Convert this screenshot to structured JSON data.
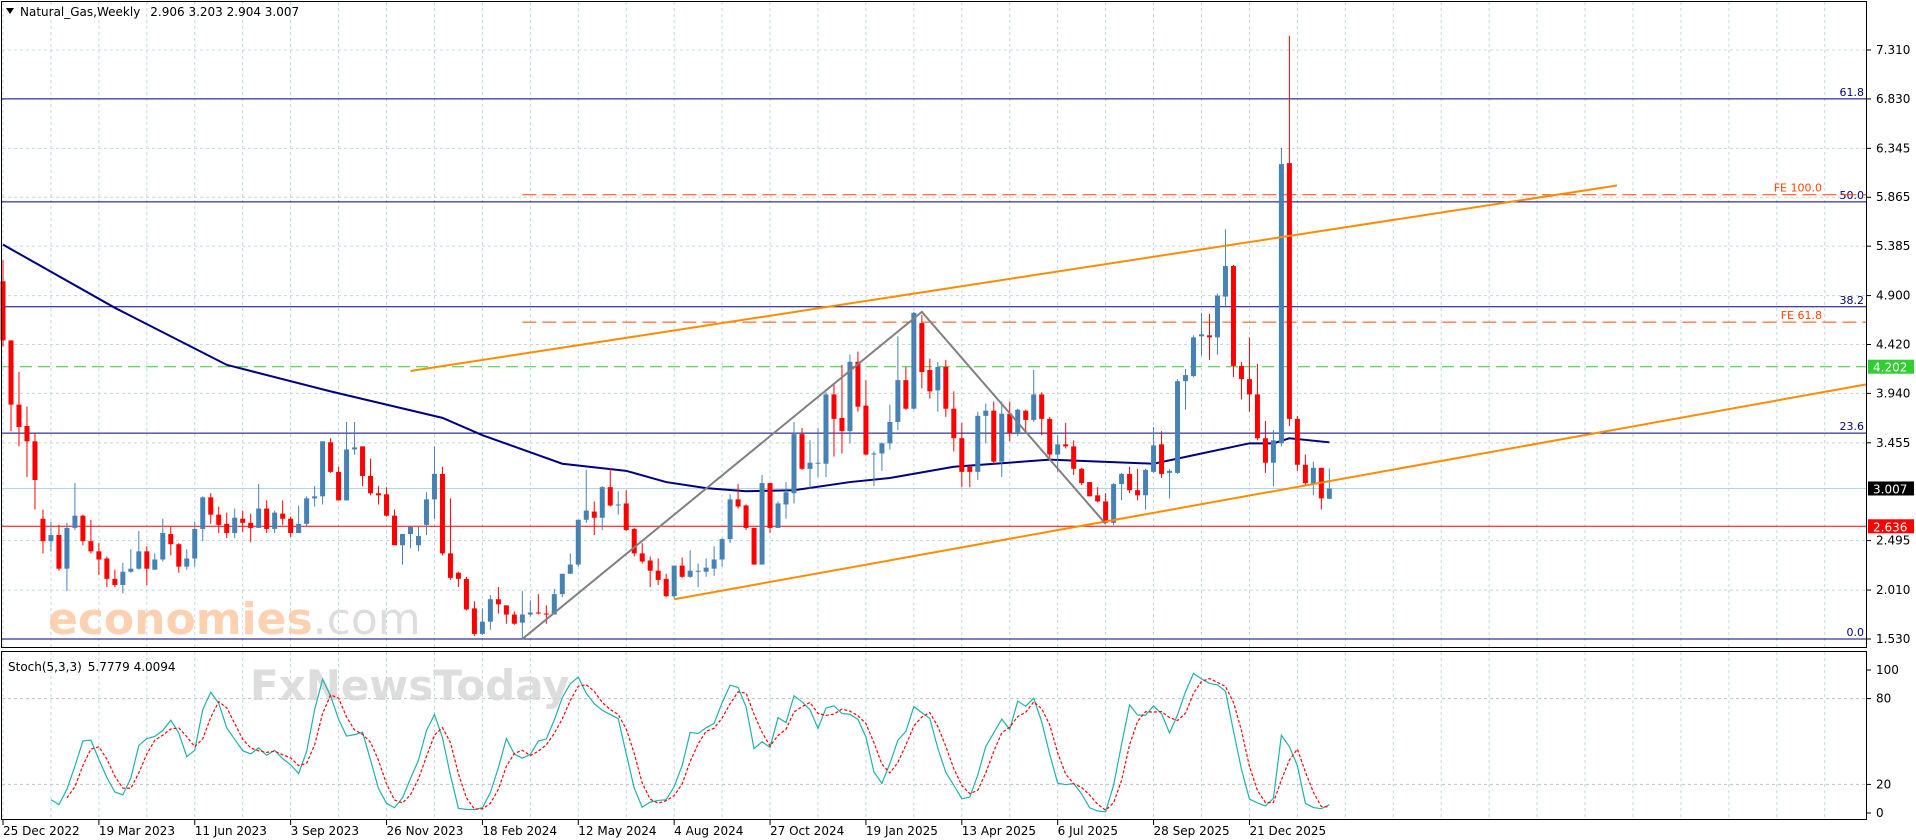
{
  "header": {
    "symbol": "Natural_Gas,Weekly",
    "ohlc": "2.906 3.203 2.904 3.007"
  },
  "colors": {
    "bull": "#4682b4",
    "bear": "#ff0000",
    "ma": "#000080",
    "channel": "#ff8c00",
    "zigzag": "#808080",
    "fib": "#000080",
    "fe": "#ff4500",
    "support": "#ff0000",
    "green_level": "#32cd32",
    "current": "#add8e6",
    "stoch_main": "#20b2aa",
    "stoch_signal": "#ff0000"
  },
  "chart_data": [
    {
      "type": "candlestick",
      "title": "Natural_Gas,Weekly",
      "y_ticks": [
        "7.310",
        "6.830",
        "6.345",
        "5.865",
        "5.385",
        "4.900",
        "4.420",
        "3.940",
        "3.455",
        "2.495",
        "2.010",
        "1.530"
      ],
      "ylim": [
        1.53,
        7.31
      ],
      "grid": true,
      "x_tick_labels": [
        "25 Dec 2022",
        "19 Mar 2023",
        "11 Jun 2023",
        "3 Sep 2023",
        "26 Nov 2023",
        "18 Feb 2024",
        "12 May 2024",
        "4 Aug 2024",
        "27 Oct 2024",
        "19 Jan 2025",
        "13 Apr 2025",
        "6 Jul 2025",
        "28 Sep 2025",
        "21 Dec 2025"
      ],
      "x_tick_every_bars": 12,
      "candles_ohlc": [
        [
          5.04,
          5.25,
          4.4,
          4.46
        ],
        [
          4.46,
          4.46,
          3.57,
          3.83
        ],
        [
          3.83,
          4.15,
          3.42,
          3.61
        ],
        [
          3.62,
          3.81,
          3.12,
          3.47
        ],
        [
          3.47,
          3.55,
          2.8,
          3.09
        ],
        [
          2.71,
          2.8,
          2.37,
          2.49
        ],
        [
          2.49,
          2.68,
          2.39,
          2.55
        ],
        [
          2.55,
          2.65,
          2.2,
          2.22
        ],
        [
          2.22,
          2.67,
          2.0,
          2.62
        ],
        [
          2.62,
          3.06,
          2.6,
          2.74
        ],
        [
          2.74,
          2.75,
          2.45,
          2.49
        ],
        [
          2.49,
          2.7,
          2.37,
          2.39
        ],
        [
          2.39,
          2.47,
          2.16,
          2.31
        ],
        [
          2.32,
          2.34,
          2.04,
          2.12
        ],
        [
          2.12,
          2.21,
          2.04,
          2.06
        ],
        [
          2.06,
          2.28,
          1.98,
          2.19
        ],
        [
          2.19,
          2.41,
          2.18,
          2.22
        ],
        [
          2.22,
          2.59,
          2.21,
          2.39
        ],
        [
          2.39,
          2.44,
          2.06,
          2.22
        ],
        [
          2.21,
          2.37,
          2.21,
          2.31
        ],
        [
          2.31,
          2.71,
          2.29,
          2.57
        ],
        [
          2.56,
          2.63,
          2.35,
          2.46
        ],
        [
          2.46,
          2.47,
          2.18,
          2.24
        ],
        [
          2.24,
          2.41,
          2.21,
          2.32
        ],
        [
          2.32,
          2.68,
          2.24,
          2.61
        ],
        [
          2.61,
          2.93,
          2.49,
          2.92
        ],
        [
          2.92,
          2.96,
          2.66,
          2.75
        ],
        [
          2.75,
          2.83,
          2.57,
          2.65
        ],
        [
          2.66,
          2.77,
          2.52,
          2.57
        ],
        [
          2.57,
          2.81,
          2.52,
          2.72
        ],
        [
          2.71,
          2.79,
          2.58,
          2.67
        ],
        [
          2.67,
          2.76,
          2.48,
          2.62
        ],
        [
          2.62,
          3.05,
          2.62,
          2.81
        ],
        [
          2.81,
          2.89,
          2.57,
          2.61
        ],
        [
          2.61,
          2.79,
          2.57,
          2.77
        ],
        [
          2.76,
          2.89,
          2.65,
          2.71
        ],
        [
          2.71,
          2.73,
          2.53,
          2.57
        ],
        [
          2.57,
          2.84,
          2.57,
          2.66
        ],
        [
          2.66,
          2.93,
          2.64,
          2.91
        ],
        [
          2.91,
          3.03,
          2.83,
          2.93
        ],
        [
          2.93,
          3.47,
          2.85,
          3.47
        ],
        [
          3.46,
          3.5,
          3.16,
          3.17
        ],
        [
          3.17,
          3.22,
          2.89,
          2.89
        ],
        [
          2.89,
          3.66,
          2.89,
          3.39
        ],
        [
          3.39,
          3.66,
          3.34,
          3.41
        ],
        [
          3.42,
          3.42,
          3.03,
          3.13
        ],
        [
          3.13,
          3.3,
          2.94,
          2.96
        ],
        [
          2.96,
          3.03,
          2.85,
          2.94
        ],
        [
          2.95,
          3.02,
          2.73,
          2.74
        ],
        [
          2.74,
          2.8,
          2.45,
          2.45
        ],
        [
          2.45,
          2.56,
          2.26,
          2.56
        ],
        [
          2.56,
          2.63,
          2.42,
          2.63
        ],
        [
          2.45,
          2.63,
          2.39,
          2.54
        ],
        [
          2.65,
          2.97,
          2.55,
          2.9
        ],
        [
          2.9,
          3.42,
          2.71,
          3.15
        ],
        [
          3.15,
          3.22,
          2.35,
          2.37
        ],
        [
          2.37,
          2.91,
          2.11,
          2.13
        ],
        [
          2.18,
          2.19,
          2.04,
          2.12
        ],
        [
          2.12,
          2.14,
          1.81,
          1.82
        ],
        [
          1.83,
          1.9,
          1.56,
          1.58
        ],
        [
          1.58,
          1.83,
          1.57,
          1.7
        ],
        [
          1.7,
          1.96,
          1.62,
          1.92
        ],
        [
          1.92,
          2.04,
          1.78,
          1.87
        ],
        [
          1.86,
          1.86,
          1.68,
          1.77
        ],
        [
          1.77,
          1.8,
          1.67,
          1.68
        ],
        [
          1.69,
          2.0,
          1.53,
          1.77
        ],
        [
          1.77,
          1.91,
          1.75,
          1.79
        ],
        [
          1.79,
          1.97,
          1.77,
          1.78
        ],
        [
          1.78,
          1.86,
          1.68,
          1.77
        ],
        [
          1.77,
          2.02,
          1.77,
          1.97
        ],
        [
          1.97,
          2.17,
          1.94,
          2.17
        ],
        [
          2.17,
          2.37,
          2.17,
          2.26
        ],
        [
          2.26,
          2.7,
          2.24,
          2.7
        ],
        [
          2.7,
          3.19,
          2.67,
          2.79
        ],
        [
          2.78,
          2.88,
          2.55,
          2.72
        ],
        [
          2.72,
          3.03,
          2.6,
          3.02
        ],
        [
          3.02,
          3.21,
          2.83,
          2.84
        ],
        [
          2.84,
          2.98,
          2.75,
          2.85
        ],
        [
          2.86,
          2.99,
          2.59,
          2.6
        ],
        [
          2.61,
          2.62,
          2.34,
          2.37
        ],
        [
          2.37,
          2.47,
          2.27,
          2.29
        ],
        [
          2.3,
          2.34,
          2.04,
          2.2
        ],
        [
          2.2,
          2.32,
          2.06,
          2.11
        ],
        [
          2.12,
          2.17,
          1.94,
          1.95
        ],
        [
          1.95,
          2.25,
          1.93,
          2.25
        ],
        [
          2.25,
          2.33,
          2.13,
          2.14
        ],
        [
          2.14,
          2.4,
          2.13,
          2.2
        ],
        [
          2.19,
          2.27,
          2.04,
          2.2
        ],
        [
          2.19,
          2.32,
          2.14,
          2.23
        ],
        [
          2.22,
          2.44,
          2.15,
          2.31
        ],
        [
          2.31,
          2.52,
          2.24,
          2.51
        ],
        [
          2.51,
          2.95,
          2.47,
          2.9
        ],
        [
          2.9,
          3.05,
          2.81,
          2.83
        ],
        [
          2.84,
          2.85,
          2.6,
          2.62
        ],
        [
          2.62,
          2.62,
          2.26,
          2.26
        ],
        [
          2.26,
          3.14,
          2.26,
          3.06
        ],
        [
          3.06,
          3.06,
          2.57,
          2.62
        ],
        [
          2.62,
          2.88,
          2.62,
          2.86
        ],
        [
          2.85,
          3.07,
          2.71,
          2.97
        ],
        [
          2.96,
          3.66,
          2.86,
          3.54
        ],
        [
          3.54,
          3.6,
          3.19,
          3.2
        ],
        [
          3.2,
          3.48,
          3.0,
          3.26
        ],
        [
          3.25,
          3.6,
          3.12,
          3.26
        ],
        [
          3.25,
          3.95,
          3.12,
          3.93
        ],
        [
          3.93,
          4.04,
          3.32,
          3.69
        ],
        [
          3.7,
          4.22,
          3.35,
          3.57
        ],
        [
          3.57,
          4.32,
          3.45,
          4.25
        ],
        [
          4.25,
          4.35,
          3.76,
          3.81
        ],
        [
          3.82,
          4.07,
          3.33,
          3.34
        ],
        [
          3.34,
          3.37,
          3.03,
          3.35
        ],
        [
          3.35,
          3.46,
          3.18,
          3.45
        ],
        [
          3.45,
          3.83,
          3.39,
          3.66
        ],
        [
          3.66,
          4.5,
          3.58,
          4.07
        ],
        [
          4.07,
          4.2,
          3.78,
          3.79
        ],
        [
          3.79,
          4.74,
          3.78,
          4.73
        ],
        [
          4.63,
          4.71,
          3.99,
          4.15
        ],
        [
          4.17,
          4.28,
          3.89,
          3.96
        ],
        [
          3.97,
          4.25,
          3.76,
          4.2
        ],
        [
          4.2,
          4.27,
          3.71,
          3.79
        ],
        [
          3.79,
          3.96,
          3.37,
          3.5
        ],
        [
          3.5,
          3.65,
          3.02,
          3.17
        ],
        [
          3.22,
          3.22,
          3.02,
          3.17
        ],
        [
          3.17,
          3.76,
          3.09,
          3.72
        ],
        [
          3.72,
          3.84,
          3.45,
          3.77
        ],
        [
          3.77,
          3.86,
          3.25,
          3.27
        ],
        [
          3.27,
          3.86,
          3.12,
          3.74
        ],
        [
          3.74,
          3.86,
          3.47,
          3.55
        ],
        [
          3.55,
          3.79,
          3.52,
          3.78
        ],
        [
          3.77,
          3.78,
          3.56,
          3.68
        ],
        [
          3.68,
          4.17,
          3.66,
          3.93
        ],
        [
          3.93,
          3.95,
          3.53,
          3.69
        ],
        [
          3.69,
          3.71,
          3.29,
          3.34
        ],
        [
          3.34,
          3.53,
          3.17,
          3.44
        ],
        [
          3.44,
          3.65,
          3.4,
          3.42
        ],
        [
          3.42,
          3.48,
          3.14,
          3.2
        ],
        [
          3.2,
          3.21,
          3.04,
          3.06
        ],
        [
          3.07,
          3.07,
          2.93,
          2.93
        ],
        [
          2.94,
          3.02,
          2.87,
          2.88
        ],
        [
          2.88,
          2.96,
          2.66,
          2.67
        ],
        [
          2.67,
          3.06,
          2.65,
          3.05
        ],
        [
          3.05,
          3.16,
          2.89,
          3.15
        ],
        [
          3.15,
          3.22,
          2.96,
          2.99
        ],
        [
          2.99,
          3.2,
          2.89,
          2.94
        ],
        [
          2.94,
          3.2,
          2.8,
          3.19
        ],
        [
          3.17,
          3.61,
          3.16,
          3.43
        ],
        [
          3.44,
          3.57,
          3.11,
          3.15
        ],
        [
          3.16,
          3.2,
          2.91,
          3.18
        ],
        [
          3.16,
          4.08,
          3.15,
          4.06
        ],
        [
          4.06,
          4.18,
          3.78,
          4.12
        ],
        [
          4.11,
          4.51,
          4.1,
          4.49
        ],
        [
          4.5,
          4.73,
          4.31,
          4.52
        ],
        [
          4.51,
          4.72,
          4.27,
          4.49
        ],
        [
          4.49,
          4.92,
          4.32,
          4.9
        ],
        [
          4.89,
          5.55,
          4.8,
          5.19
        ],
        [
          5.19,
          5.2,
          4.1,
          4.21
        ],
        [
          4.21,
          4.25,
          3.88,
          4.08
        ],
        [
          4.08,
          4.49,
          3.76,
          3.93
        ],
        [
          3.93,
          4.23,
          3.48,
          3.5
        ],
        [
          3.5,
          3.67,
          3.16,
          3.26
        ],
        [
          3.26,
          3.58,
          3.03,
          3.48
        ],
        [
          3.45,
          6.35,
          3.42,
          6.19
        ],
        [
          6.2,
          7.45,
          3.62,
          3.69
        ],
        [
          3.69,
          3.72,
          3.18,
          3.24
        ],
        [
          3.24,
          3.34,
          3.04,
          3.06
        ],
        [
          3.05,
          3.27,
          2.94,
          3.21
        ],
        [
          3.21,
          3.21,
          2.8,
          2.91
        ],
        [
          2.906,
          3.203,
          2.904,
          3.007
        ]
      ],
      "moving_average_points_bar_price": [
        [
          0,
          5.4
        ],
        [
          14,
          4.78
        ],
        [
          28,
          4.22
        ],
        [
          41,
          3.96
        ],
        [
          55,
          3.7
        ],
        [
          60,
          3.53
        ],
        [
          70,
          3.25
        ],
        [
          78,
          3.18
        ],
        [
          83,
          3.07
        ],
        [
          88,
          3.01
        ],
        [
          93,
          2.98
        ],
        [
          99,
          2.99
        ],
        [
          106,
          3.07
        ],
        [
          111,
          3.11
        ],
        [
          119,
          3.22
        ],
        [
          131,
          3.29
        ],
        [
          144,
          3.25
        ],
        [
          150,
          3.35
        ],
        [
          156,
          3.45
        ],
        [
          159,
          3.45
        ],
        [
          161,
          3.5
        ],
        [
          166,
          3.46
        ]
      ],
      "fibonacci_retracement": [
        {
          "label": "61.8",
          "price": 6.83
        },
        {
          "label": "50.0",
          "price": 5.82
        },
        {
          "label": "38.2",
          "price": 4.79
        },
        {
          "label": "23.6",
          "price": 3.55
        },
        {
          "label": "0.0",
          "price": 1.53
        }
      ],
      "fibonacci_expansion": [
        {
          "label": "FE 100.0",
          "price": 5.89,
          "from_bar": 65
        },
        {
          "label": "FE 61.8",
          "price": 4.64,
          "from_bar": 65
        }
      ],
      "price_markers": [
        {
          "label": "4.202",
          "price": 4.202,
          "style": "green-dashed"
        },
        {
          "label": "3.007",
          "price": 3.007,
          "style": "current"
        },
        {
          "label": "2.636",
          "price": 2.636,
          "style": "red-solid"
        }
      ],
      "channel_lines": [
        {
          "from": [
            51,
            4.16
          ],
          "to": [
            202,
            5.98
          ]
        },
        {
          "from": [
            84,
            1.92
          ],
          "to": [
            234,
            4.04
          ]
        }
      ],
      "zigzag_points_bar_price": [
        [
          65,
          1.53
        ],
        [
          115,
          4.74
        ],
        [
          138,
          2.66
        ]
      ]
    },
    {
      "type": "line",
      "title": "Stoch(5,3,3)",
      "values_text": "5.7779 4.0094",
      "y_ticks": [
        "100",
        "80",
        "20",
        "0"
      ],
      "ylim": [
        0,
        100
      ],
      "levels": [
        20,
        80
      ],
      "series_note_params": [
        5,
        3,
        3
      ]
    }
  ],
  "watermarks": {
    "brand1_main": "economies",
    "brand1_suffix": ".com",
    "brand2": "FxNewsToday"
  }
}
